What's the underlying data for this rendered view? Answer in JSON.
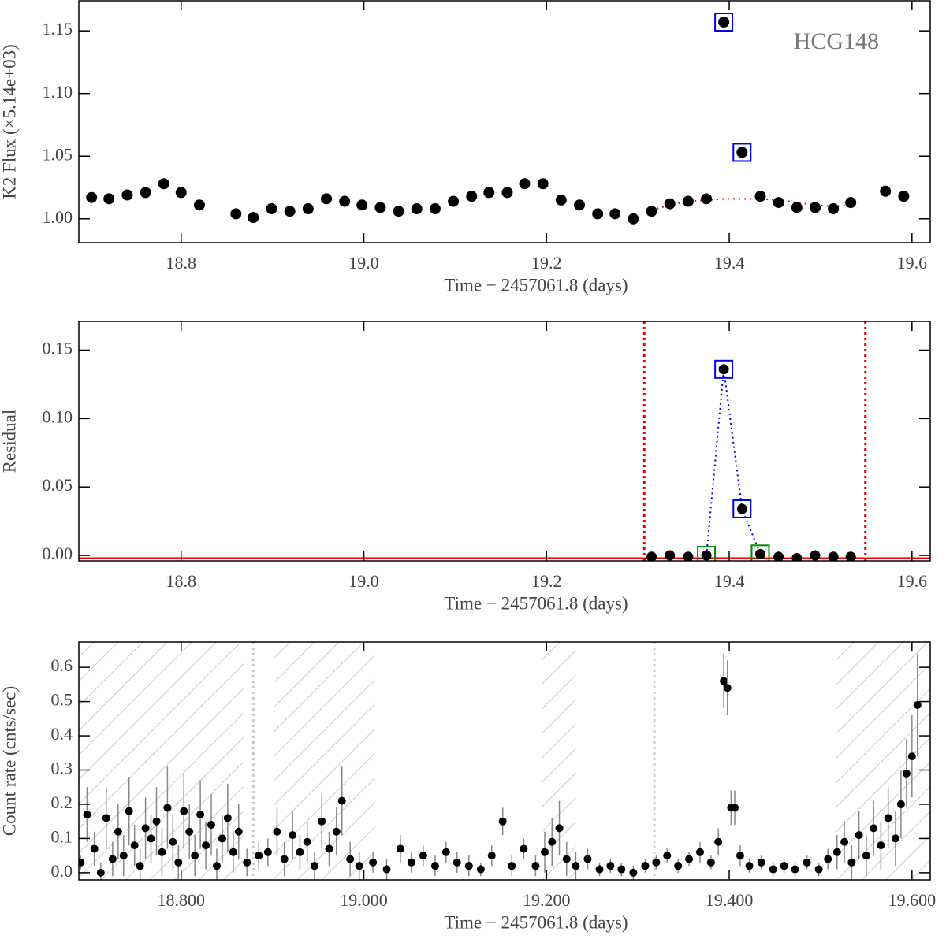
{
  "chart_data": [
    {
      "type": "scatter",
      "annotation": "HCG148",
      "ylabel": "K2 Flux (×5.14e+03)",
      "xlabel": "Time − 2457061.8 (days)",
      "x": [
        18.702,
        18.721,
        18.741,
        18.761,
        18.781,
        18.8,
        18.82,
        18.86,
        18.879,
        18.899,
        18.919,
        18.939,
        18.959,
        18.979,
        18.998,
        19.018,
        19.038,
        19.058,
        19.078,
        19.098,
        19.118,
        19.137,
        19.157,
        19.176,
        19.196,
        19.216,
        19.236,
        19.256,
        19.275,
        19.295,
        19.315,
        19.335,
        19.355,
        19.375,
        19.394,
        19.414,
        19.434,
        19.454,
        19.474,
        19.494,
        19.514,
        19.533,
        19.571,
        19.591
      ],
      "values": [
        1.017,
        1.016,
        1.019,
        1.021,
        1.028,
        1.021,
        1.011,
        1.004,
        1.001,
        1.008,
        1.006,
        1.008,
        1.016,
        1.014,
        1.011,
        1.009,
        1.006,
        1.008,
        1.008,
        1.014,
        1.018,
        1.021,
        1.021,
        1.028,
        1.028,
        1.015,
        1.011,
        1.004,
        1.004,
        1.0,
        1.006,
        1.012,
        1.014,
        1.016,
        1.157,
        1.053,
        1.018,
        1.013,
        1.009,
        1.009,
        1.008,
        1.013,
        1.022,
        1.018
      ],
      "color": "#000000",
      "highlights": [
        {
          "indices": [
            34,
            35
          ],
          "color": "#0000ee"
        }
      ],
      "lines": [
        {
          "x": [
            19.315,
            19.335,
            19.355,
            19.375,
            19.394,
            19.414,
            19.434,
            19.454,
            19.474,
            19.494,
            19.514,
            19.533
          ],
          "values": [
            1.007,
            1.011,
            1.014,
            1.015,
            1.016,
            1.016,
            1.016,
            1.015,
            1.013,
            1.011,
            1.01,
            1.011
          ],
          "color": "#ee0000"
        }
      ],
      "xlim": [
        18.688,
        19.62
      ],
      "ylim": [
        0.981,
        1.174
      ],
      "xticks": [
        18.8,
        {
          "value": 19.0,
          "label": "19.0"
        },
        19.2,
        19.4,
        19.6
      ],
      "yticks": [
        {
          "value": 1.0,
          "label": "1.00"
        },
        1.05,
        {
          "value": 1.1,
          "label": "1.10"
        },
        1.15
      ]
    },
    {
      "type": "scatter",
      "ylabel": "Residual",
      "xlabel": "Time − 2457061.8 (days)",
      "x": [
        19.315,
        19.335,
        19.355,
        19.375,
        19.394,
        19.414,
        19.434,
        19.454,
        19.474,
        19.494,
        19.514,
        19.533
      ],
      "values": [
        -0.001,
        0.0,
        -0.001,
        0.0,
        0.136,
        0.034,
        0.001,
        -0.001,
        -0.002,
        0.0,
        -0.001,
        -0.001
      ],
      "color": "#000000",
      "highlights": [
        {
          "indices": [
            4,
            5
          ],
          "color": "#0000ee"
        },
        {
          "indices": [
            3,
            6
          ],
          "color": "#008800"
        }
      ],
      "connect": {
        "indices": [
          3,
          4,
          5,
          6
        ],
        "color": "#0000ee"
      },
      "vlines": [
        19.307,
        19.549
      ],
      "vline_color": "#ee0000",
      "hline": -0.002,
      "hline_color": "#ee0000",
      "xlim": [
        18.688,
        19.62
      ],
      "ylim": [
        -0.004,
        0.171
      ],
      "xticks": [
        18.8,
        {
          "value": 19.0,
          "label": "19.0"
        },
        19.2,
        19.4,
        19.6
      ],
      "yticks": [
        {
          "value": 0.0,
          "label": "0.00"
        },
        0.05,
        {
          "value": 0.1,
          "label": "0.10"
        },
        0.15
      ]
    },
    {
      "type": "errorbar",
      "ylabel": "Count rate (cnts/sec)",
      "xlabel": "Time − 2457061.8 (days)",
      "x": [
        18.69,
        18.697,
        18.705,
        18.712,
        18.718,
        18.725,
        18.731,
        18.737,
        18.743,
        18.749,
        18.755,
        18.761,
        18.767,
        18.773,
        18.779,
        18.785,
        18.791,
        18.797,
        18.803,
        18.809,
        18.815,
        18.821,
        18.827,
        18.833,
        18.839,
        18.845,
        18.851,
        18.857,
        18.863,
        18.872,
        18.885,
        18.895,
        18.905,
        18.913,
        18.922,
        18.93,
        18.938,
        18.946,
        18.954,
        18.962,
        18.97,
        18.976,
        18.985,
        18.995,
        19.01,
        19.025,
        19.04,
        19.052,
        19.065,
        19.078,
        19.09,
        19.102,
        19.115,
        19.128,
        19.14,
        19.152,
        19.162,
        19.175,
        19.188,
        19.198,
        19.206,
        19.214,
        19.222,
        19.232,
        19.245,
        19.258,
        19.27,
        19.282,
        19.295,
        19.308,
        19.32,
        19.332,
        19.344,
        19.356,
        19.368,
        19.38,
        19.388,
        19.394,
        19.398,
        19.402,
        19.406,
        19.412,
        19.422,
        19.435,
        19.448,
        19.46,
        19.472,
        19.485,
        19.498,
        19.508,
        19.518,
        19.526,
        19.534,
        19.542,
        19.55,
        19.558,
        19.566,
        19.574,
        19.582,
        19.588,
        19.594,
        19.6,
        19.606
      ],
      "values": [
        0.03,
        0.17,
        0.07,
        0.0,
        0.16,
        0.04,
        0.12,
        0.05,
        0.18,
        0.08,
        0.02,
        0.13,
        0.1,
        0.15,
        0.06,
        0.19,
        0.09,
        0.03,
        0.18,
        0.12,
        0.05,
        0.17,
        0.08,
        0.14,
        0.02,
        0.1,
        0.16,
        0.06,
        0.12,
        0.03,
        0.05,
        0.06,
        0.12,
        0.04,
        0.11,
        0.06,
        0.09,
        0.02,
        0.15,
        0.07,
        0.12,
        0.21,
        0.04,
        0.02,
        0.03,
        0.01,
        0.07,
        0.03,
        0.05,
        0.02,
        0.06,
        0.03,
        0.02,
        0.01,
        0.05,
        0.15,
        0.02,
        0.07,
        0.02,
        0.06,
        0.09,
        0.13,
        0.04,
        0.02,
        0.04,
        0.01,
        0.02,
        0.01,
        0.0,
        0.02,
        0.03,
        0.05,
        0.02,
        0.04,
        0.06,
        0.03,
        0.09,
        0.56,
        0.54,
        0.19,
        0.19,
        0.05,
        0.02,
        0.03,
        0.01,
        0.02,
        0.01,
        0.03,
        0.01,
        0.04,
        0.06,
        0.09,
        0.03,
        0.11,
        0.05,
        0.13,
        0.08,
        0.16,
        0.1,
        0.2,
        0.29,
        0.34,
        0.49
      ],
      "errors": [
        0.02,
        0.08,
        0.05,
        0.03,
        0.09,
        0.05,
        0.08,
        0.06,
        0.1,
        0.06,
        0.05,
        0.09,
        0.07,
        0.1,
        0.07,
        0.12,
        0.08,
        0.05,
        0.11,
        0.08,
        0.06,
        0.1,
        0.07,
        0.09,
        0.05,
        0.07,
        0.1,
        0.06,
        0.08,
        0.04,
        0.04,
        0.04,
        0.07,
        0.05,
        0.07,
        0.05,
        0.06,
        0.04,
        0.08,
        0.05,
        0.07,
        0.1,
        0.05,
        0.04,
        0.03,
        0.03,
        0.04,
        0.03,
        0.03,
        0.03,
        0.03,
        0.03,
        0.03,
        0.02,
        0.03,
        0.04,
        0.03,
        0.03,
        0.03,
        0.06,
        0.07,
        0.08,
        0.05,
        0.04,
        0.03,
        0.02,
        0.02,
        0.02,
        0.02,
        0.02,
        0.02,
        0.02,
        0.02,
        0.02,
        0.03,
        0.02,
        0.04,
        0.08,
        0.08,
        0.05,
        0.05,
        0.03,
        0.02,
        0.02,
        0.02,
        0.02,
        0.02,
        0.02,
        0.02,
        0.03,
        0.05,
        0.06,
        0.05,
        0.07,
        0.06,
        0.08,
        0.07,
        0.09,
        0.08,
        0.1,
        0.1,
        0.12,
        0.15
      ],
      "color": "#000000",
      "error_color": "#888888",
      "shaded_regions": [
        [
          18.688,
          18.868
        ],
        [
          18.902,
          19.012
        ],
        [
          19.195,
          19.232
        ],
        [
          19.517,
          19.62
        ]
      ],
      "vlines": [
        18.879,
        19.318
      ],
      "vline_color": "#cccccc",
      "xlim": [
        18.688,
        19.62
      ],
      "ylim": [
        -0.021,
        0.674
      ],
      "xticks": [
        {
          "value": 18.8,
          "label": "18.800"
        },
        {
          "value": 19.0,
          "label": "19.000"
        },
        {
          "value": 19.2,
          "label": "19.200"
        },
        {
          "value": 19.4,
          "label": "19.400"
        },
        {
          "value": 19.6,
          "label": "19.600"
        }
      ],
      "yticks": [
        {
          "value": 0.0,
          "label": "0.0"
        },
        0.1,
        0.2,
        0.3,
        0.4,
        0.5,
        0.6
      ]
    }
  ]
}
